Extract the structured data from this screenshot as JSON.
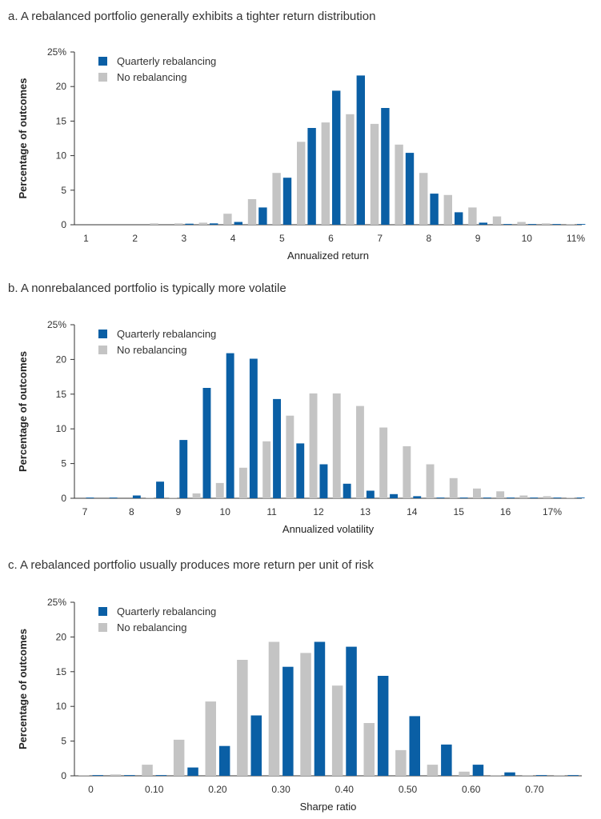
{
  "colors": {
    "rebalanced": "#0a5fa5",
    "no_rebalancing": "#c4c4c4",
    "axis": "#333333"
  },
  "chart_data": [
    {
      "type": "bar",
      "title": "a. A rebalanced portfolio generally exhibits a tighter return distribution",
      "xlabel": "Annualized return",
      "ylabel": "Percentage of outcomes",
      "ylim": [
        0,
        25
      ],
      "yticks": [
        "0",
        "5",
        "10",
        "15",
        "20",
        "25%"
      ],
      "xticks": [
        "1",
        "2",
        "3",
        "4",
        "5",
        "6",
        "7",
        "8",
        "9",
        "10",
        "11%"
      ],
      "legend_position": "top-left",
      "categories": [
        "1",
        "1.5",
        "2",
        "2.5",
        "3",
        "3.5",
        "4",
        "4.5",
        "5",
        "5.5",
        "6",
        "6.5",
        "7",
        "7.5",
        "8",
        "8.5",
        "9",
        "9.5",
        "10",
        "10.5",
        "11"
      ],
      "series": [
        {
          "name": "Quarterly rebalancing",
          "values": [
            0,
            0,
            0,
            0,
            0.15,
            0.2,
            0.4,
            2.5,
            6.8,
            14,
            19.4,
            21.6,
            16.9,
            10.4,
            4.5,
            1.8,
            0.3,
            0.1,
            0.1,
            0.1,
            0.1
          ]
        },
        {
          "name": "No rebalancing",
          "values": [
            0,
            0,
            0,
            0.2,
            0.2,
            0.3,
            1.6,
            3.7,
            7.5,
            12.0,
            14.8,
            16.0,
            14.6,
            11.6,
            7.5,
            4.3,
            2.5,
            1.2,
            0.4,
            0.2,
            0.1
          ]
        }
      ]
    },
    {
      "type": "bar",
      "title": "b. A nonrebalanced portfolio is typically more volatile",
      "xlabel": "Annualized volatility",
      "ylabel": "Percentage of outcomes",
      "ylim": [
        0,
        25
      ],
      "yticks": [
        "0",
        "5",
        "10",
        "15",
        "20",
        "25%"
      ],
      "xticks": [
        "7",
        "8",
        "9",
        "10",
        "11",
        "12",
        "13",
        "14",
        "15",
        "16",
        "17%"
      ],
      "legend_position": "top-left",
      "categories": [
        "7",
        "7.5",
        "8",
        "8.5",
        "9",
        "9.5",
        "10",
        "10.5",
        "11",
        "11.5",
        "12",
        "12.5",
        "13",
        "13.5",
        "14",
        "14.5",
        "15",
        "15.5",
        "16",
        "16.5",
        "17",
        "17.5"
      ],
      "series": [
        {
          "name": "Quarterly rebalancing",
          "values": [
            0.1,
            0.1,
            0.4,
            2.4,
            8.4,
            15.9,
            20.9,
            20.1,
            14.3,
            7.9,
            4.9,
            2.1,
            1.1,
            0.6,
            0.3,
            0.1,
            0.1,
            0.1,
            0.1,
            0.1,
            0.1,
            0.1
          ]
        },
        {
          "name": "No rebalancing",
          "values": [
            0,
            0,
            0,
            0.1,
            0.1,
            0.7,
            2.2,
            4.4,
            8.2,
            11.9,
            15.1,
            15.1,
            13.3,
            10.2,
            7.5,
            4.9,
            2.9,
            1.4,
            1.0,
            0.4,
            0.3,
            0.1
          ]
        }
      ]
    },
    {
      "type": "bar",
      "title": "c. A rebalanced portfolio usually produces more return per unit of risk",
      "xlabel": "Sharpe ratio",
      "ylabel": "Percentage of outcomes",
      "ylim": [
        0,
        25
      ],
      "yticks": [
        "0",
        "5",
        "10",
        "15",
        "20",
        "25%"
      ],
      "xticks": [
        "0",
        "0.10",
        "0.20",
        "0.30",
        "0.40",
        "0.50",
        "0.60",
        "0.70"
      ],
      "legend_position": "top-left",
      "categories": [
        "0",
        "0.05",
        "0.10",
        "0.15",
        "0.20",
        "0.25",
        "0.30",
        "0.35",
        "0.40",
        "0.45",
        "0.50",
        "0.55",
        "0.60",
        "0.65",
        "0.70",
        "0.75"
      ],
      "series": [
        {
          "name": "Quarterly rebalancing",
          "values": [
            0.1,
            0.1,
            0.1,
            1.2,
            4.3,
            8.7,
            15.7,
            19.3,
            18.6,
            14.4,
            8.6,
            4.5,
            1.6,
            0.5,
            0.1,
            0.1
          ]
        },
        {
          "name": "No rebalancing",
          "values": [
            0.1,
            0.2,
            1.6,
            5.2,
            10.7,
            16.7,
            19.3,
            17.7,
            13.0,
            7.6,
            3.7,
            1.6,
            0.6,
            0.1,
            0.1,
            0.1
          ]
        }
      ]
    }
  ]
}
